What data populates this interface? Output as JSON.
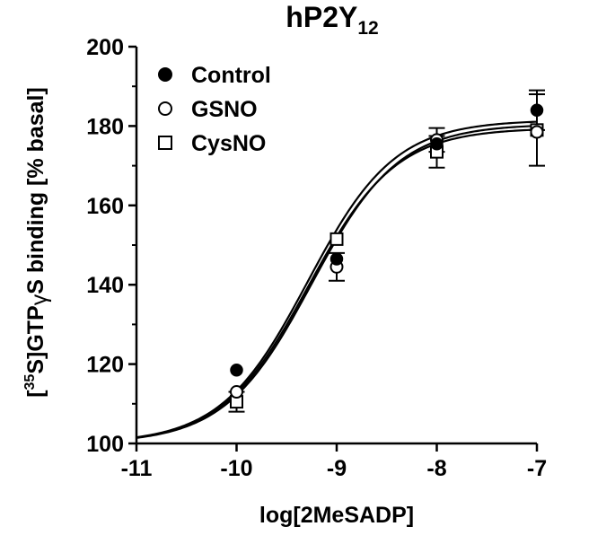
{
  "chart_data": {
    "type": "scatter",
    "title": "hP2Y",
    "title_subscript": "12",
    "xlabel": "log[2MeSADP]",
    "ylabel": {
      "open": "[",
      "superscript": "35",
      "middle": "S]GTP",
      "gamma": "γ",
      "end": "S binding [% basal]"
    },
    "xlim": [
      -11,
      -7
    ],
    "ylim": [
      100,
      200
    ],
    "x_ticks": [
      "-11",
      "-10",
      "-9",
      "-8",
      "-7"
    ],
    "y_ticks": [
      "100",
      "120",
      "140",
      "160",
      "180",
      "200"
    ],
    "legend_position": "top-left",
    "series": [
      {
        "name": "Control",
        "marker": "filled-circle",
        "x": [
          -10,
          -9,
          -8,
          -7
        ],
        "y": [
          118.5,
          146.5,
          175.5,
          184
        ],
        "err": [
          0,
          0,
          0,
          5
        ],
        "fit": {
          "bottom": 100,
          "top": 179.5,
          "logEC50": -9.28,
          "hill": 1
        }
      },
      {
        "name": "GSNO",
        "marker": "open-circle",
        "x": [
          -10,
          -9,
          -8,
          -7
        ],
        "y": [
          113,
          144.5,
          176.5,
          178.5
        ],
        "err": [
          0,
          3.5,
          3,
          0
        ],
        "fit": {
          "bottom": 100,
          "top": 180.5,
          "logEC50": -9.25,
          "hill": 1
        }
      },
      {
        "name": "CysNO",
        "marker": "open-square",
        "x": [
          -10,
          -9,
          -8,
          -7
        ],
        "y": [
          110.5,
          151.5,
          173.5,
          179
        ],
        "err": [
          2.5,
          0,
          4,
          9
        ],
        "fit": {
          "bottom": 100,
          "top": 181.5,
          "logEC50": -9.29,
          "hill": 1
        }
      }
    ]
  }
}
